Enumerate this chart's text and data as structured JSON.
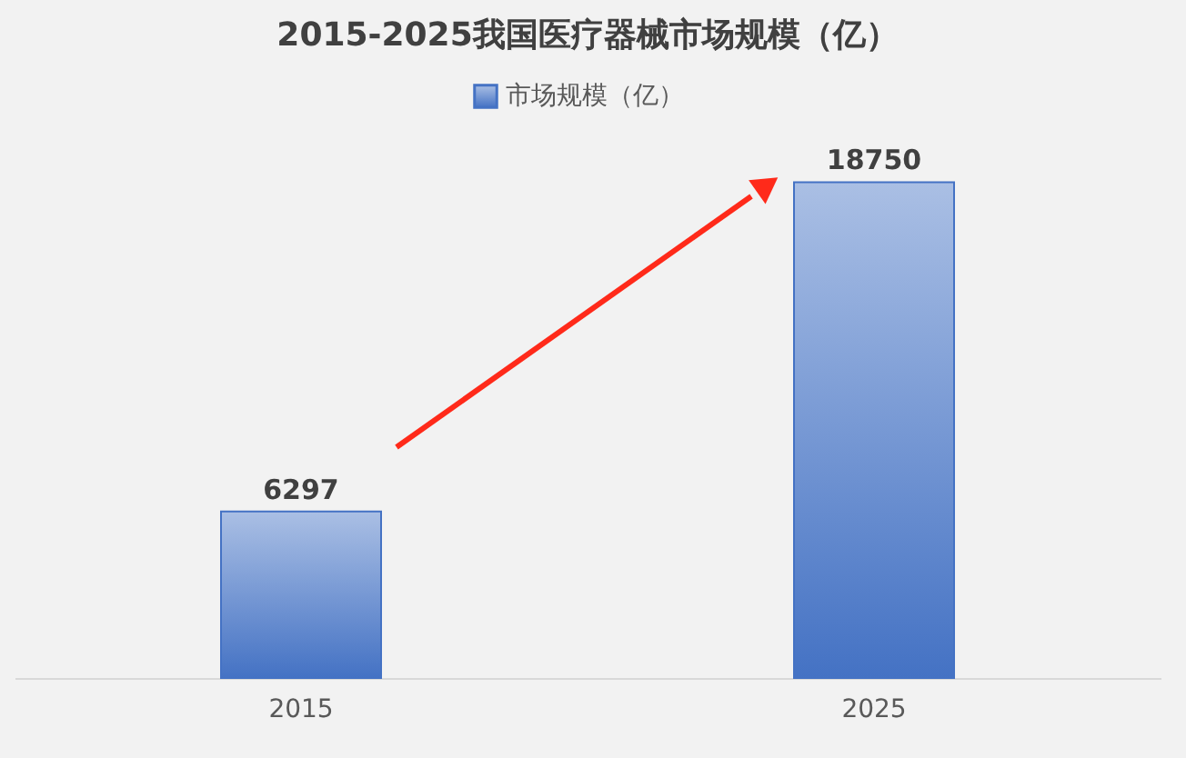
{
  "chart_data": {
    "type": "bar",
    "title": "2015-2025我国医疗器械市场规模（亿）",
    "categories": [
      "2015",
      "2025"
    ],
    "series": [
      {
        "name": "市场规模（亿）",
        "color": "#4472c4",
        "values": [
          6297,
          18750
        ]
      }
    ],
    "data_labels": true,
    "relative": false,
    "legend": "top"
  }
}
